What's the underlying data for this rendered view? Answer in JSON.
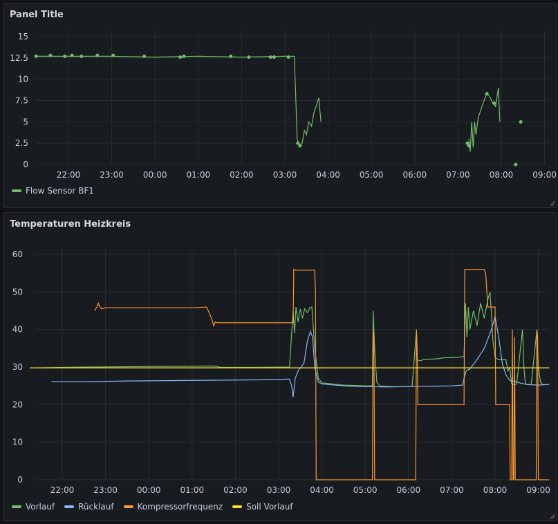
{
  "panels": [
    {
      "title": "Panel Title",
      "legend": [
        {
          "label": "Flow Sensor BF1",
          "color": "#73bf69"
        }
      ]
    },
    {
      "title": "Temperaturen Heizkreis",
      "legend": [
        {
          "label": "Vorlauf",
          "color": "#73bf69"
        },
        {
          "label": "Rücklauf",
          "color": "#8ab8ff"
        },
        {
          "label": "Kompressorfrequenz",
          "color": "#ff9830"
        },
        {
          "label": "Soll Vorlauf",
          "color": "#fade2a"
        }
      ]
    }
  ],
  "chart_data": [
    {
      "type": "line",
      "title": "Panel Title",
      "xlabel": "",
      "ylabel": "",
      "x_ticks": [
        "22:00",
        "23:00",
        "00:00",
        "01:00",
        "02:00",
        "03:00",
        "04:00",
        "05:00",
        "06:00",
        "07:00",
        "08:00",
        "09:00"
      ],
      "y_ticks": [
        "0",
        "2.5",
        "5",
        "7.5",
        "10",
        "12.5",
        "15"
      ],
      "ylim": [
        0,
        15
      ],
      "grid": true,
      "legend_position": "bottom-left",
      "series": [
        {
          "name": "Flow Sensor BF1",
          "color": "#73bf69",
          "x": [
            "21:15",
            "22:00",
            "23:00",
            "00:00",
            "01:00",
            "02:00",
            "03:00",
            "03:13",
            "03:15",
            "03:17",
            "03:20",
            "03:24",
            "03:27",
            "03:30",
            "03:33",
            "03:37",
            "03:40",
            "03:44",
            "03:47",
            "03:50"
          ],
          "values": [
            12.7,
            12.7,
            12.7,
            12.6,
            12.7,
            12.6,
            12.7,
            12.7,
            8.0,
            3.0,
            2.2,
            2.5,
            4.0,
            3.5,
            5.0,
            4.5,
            6.0,
            7.0,
            7.8,
            5.0
          ],
          "segments": [
            {
              "x": [
                "07:15",
                "07:17",
                "07:19",
                "07:21",
                "07:23",
                "07:25",
                "07:28",
                "07:32",
                "07:36",
                "07:40",
                "07:44",
                "07:48",
                "07:52",
                "07:56",
                "07:58"
              ],
              "values": [
                3.0,
                1.5,
                5.0,
                2.0,
                5.0,
                3.5,
                5.5,
                6.5,
                7.5,
                8.3,
                8.0,
                7.2,
                6.8,
                9.0,
                5.0
              ]
            }
          ],
          "points": [
            {
              "x": "21:15",
              "y": 12.7
            },
            {
              "x": "21:35",
              "y": 12.8
            },
            {
              "x": "21:55",
              "y": 12.7
            },
            {
              "x": "22:05",
              "y": 12.8
            },
            {
              "x": "22:18",
              "y": 12.7
            },
            {
              "x": "22:40",
              "y": 12.8
            },
            {
              "x": "23:02",
              "y": 12.8
            },
            {
              "x": "23:45",
              "y": 12.7
            },
            {
              "x": "00:35",
              "y": 12.6
            },
            {
              "x": "00:40",
              "y": 12.7
            },
            {
              "x": "01:45",
              "y": 12.7
            },
            {
              "x": "02:10",
              "y": 12.6
            },
            {
              "x": "02:40",
              "y": 12.6
            },
            {
              "x": "02:45",
              "y": 12.6
            },
            {
              "x": "03:05",
              "y": 12.6
            },
            {
              "x": "03:18",
              "y": 2.5
            },
            {
              "x": "03:21",
              "y": 2.2
            },
            {
              "x": "07:13",
              "y": 2.5
            },
            {
              "x": "07:15",
              "y": 2.2
            },
            {
              "x": "07:40",
              "y": 8.3
            },
            {
              "x": "07:50",
              "y": 7.2
            },
            {
              "x": "08:20",
              "y": 0
            },
            {
              "x": "08:27",
              "y": 5.0
            }
          ]
        }
      ]
    },
    {
      "type": "line",
      "title": "Temperaturen Heizkreis",
      "xlabel": "",
      "ylabel": "",
      "x_ticks": [
        "22:00",
        "23:00",
        "00:00",
        "01:00",
        "02:00",
        "03:00",
        "04:00",
        "05:00",
        "06:00",
        "07:00",
        "08:00",
        "09:00"
      ],
      "y_ticks": [
        "0",
        "10",
        "20",
        "30",
        "40",
        "50",
        "60"
      ],
      "ylim": [
        0,
        60
      ],
      "grid": true,
      "legend_position": "bottom-left",
      "series": [
        {
          "name": "Vorlauf",
          "color": "#73bf69",
          "x": [
            "21:30",
            "22:30",
            "23:30",
            "00:30",
            "01:30",
            "01:40",
            "02:30",
            "03:15",
            "03:20",
            "03:22",
            "03:24",
            "03:27",
            "03:30",
            "03:33",
            "03:36",
            "03:40",
            "03:43",
            "03:46",
            "03:50",
            "03:55",
            "04:00",
            "04:30",
            "05:00",
            "05:10",
            "05:11",
            "05:13",
            "05:16",
            "05:20",
            "05:40",
            "06:05",
            "06:11",
            "06:12",
            "06:14",
            "06:17",
            "06:20",
            "06:40",
            "06:50",
            "07:00",
            "07:17",
            "07:19",
            "07:21",
            "07:23",
            "07:25",
            "07:30",
            "07:35",
            "07:40",
            "07:45",
            "07:50",
            "07:53",
            "07:55",
            "07:57",
            "08:00",
            "08:05",
            "08:15",
            "08:18",
            "08:20",
            "08:23",
            "08:25",
            "08:30",
            "08:38",
            "08:40",
            "08:42",
            "08:45",
            "08:50",
            "08:58",
            "09:00",
            "09:03",
            "09:05",
            "09:08",
            "09:15"
          ],
          "values": [
            29.8,
            30.0,
            30.1,
            30.2,
            30.3,
            29.9,
            29.9,
            30.0,
            45.0,
            39.0,
            46.0,
            42.0,
            45.5,
            43.0,
            45.5,
            44.5,
            45.8,
            46.0,
            35.0,
            27.0,
            25.8,
            25.2,
            25.0,
            25.0,
            45.0,
            35.0,
            26.0,
            25.0,
            24.8,
            24.8,
            40.0,
            32.0,
            31.8,
            31.7,
            32.0,
            32.2,
            32.5,
            32.5,
            32.8,
            47.0,
            38.0,
            46.0,
            40.0,
            45.0,
            41.0,
            47.0,
            43.0,
            48.0,
            50.0,
            44.0,
            37.0,
            32.5,
            32.0,
            32.0,
            29.0,
            30.0,
            25.5,
            25.3,
            25.5,
            40.0,
            30.0,
            25.5,
            25.3,
            25.3,
            40.0,
            30.0,
            26.0,
            25.5,
            25.3,
            25.4
          ]
        },
        {
          "name": "Rücklauf",
          "color": "#8ab8ff",
          "x": [
            "21:45",
            "22:30",
            "23:30",
            "00:30",
            "01:30",
            "02:30",
            "03:15",
            "03:18",
            "03:20",
            "03:23",
            "03:27",
            "03:35",
            "03:40",
            "03:44",
            "03:47",
            "03:50",
            "03:55",
            "04:00",
            "04:30",
            "05:00",
            "05:30",
            "06:00",
            "06:30",
            "07:00",
            "07:15",
            "07:17",
            "07:20",
            "07:25",
            "07:35",
            "07:45",
            "07:55",
            "08:00",
            "08:05",
            "08:10",
            "08:15",
            "08:20",
            "08:30",
            "08:40",
            "08:50",
            "09:00",
            "09:15"
          ],
          "values": [
            26.1,
            26.1,
            26.3,
            26.4,
            26.5,
            26.6,
            26.8,
            25.0,
            22.0,
            27.0,
            29.0,
            31.0,
            37.0,
            39.5,
            38.0,
            30.0,
            26.0,
            25.5,
            25.0,
            24.8,
            24.7,
            24.8,
            24.9,
            25.0,
            25.2,
            27.0,
            29.0,
            29.5,
            32.0,
            35.0,
            40.0,
            43.5,
            38.0,
            31.0,
            28.0,
            26.5,
            26.0,
            25.5,
            25.3,
            25.2,
            25.4
          ]
        },
        {
          "name": "Kompressorfrequenz",
          "color": "#ff9830",
          "x": [
            "22:45",
            "22:48",
            "22:50",
            "22:52",
            "22:55",
            "23:00",
            "00:00",
            "01:00",
            "01:20",
            "01:27",
            "01:30",
            "01:32",
            "01:35",
            "02:00",
            "03:00",
            "03:15",
            "03:20",
            "03:21",
            "03:22",
            "03:50",
            "03:51",
            "03:52",
            "03:55",
            "05:00",
            "05:10",
            "05:11",
            "05:12",
            "05:13",
            "05:14",
            "05:15",
            "06:00",
            "06:10",
            "06:11",
            "06:12",
            "06:13",
            "06:14",
            "06:15",
            "06:20",
            "07:00",
            "07:17",
            "07:18",
            "07:45",
            "07:47",
            "07:50",
            "08:00",
            "08:01",
            "08:20",
            "08:21",
            "08:22",
            "08:23",
            "08:24",
            "08:25",
            "08:26",
            "08:27",
            "08:28",
            "08:29",
            "08:30",
            "08:57",
            "08:58",
            "08:59",
            "09:00",
            "09:01",
            "09:02",
            "09:15"
          ],
          "values": [
            45,
            46,
            47,
            46,
            45.5,
            45.8,
            45.8,
            45.8,
            46,
            43,
            41,
            42,
            41.8,
            41.8,
            41.8,
            41.8,
            41.8,
            56,
            55.8,
            55.8,
            50,
            0,
            0,
            0,
            0,
            40,
            38,
            0,
            0,
            0,
            0,
            0,
            40,
            35,
            20,
            20,
            20,
            20,
            20,
            20,
            56,
            56,
            55,
            46,
            46,
            20,
            20,
            0,
            0,
            0,
            40,
            0,
            0,
            38,
            0,
            0,
            0,
            0,
            40,
            38,
            0,
            0,
            0,
            0
          ]
        },
        {
          "name": "Soll Vorlauf",
          "color": "#fade2a",
          "x": [
            "21:15",
            "09:15"
          ],
          "values": [
            29.8,
            29.8
          ]
        }
      ]
    }
  ]
}
